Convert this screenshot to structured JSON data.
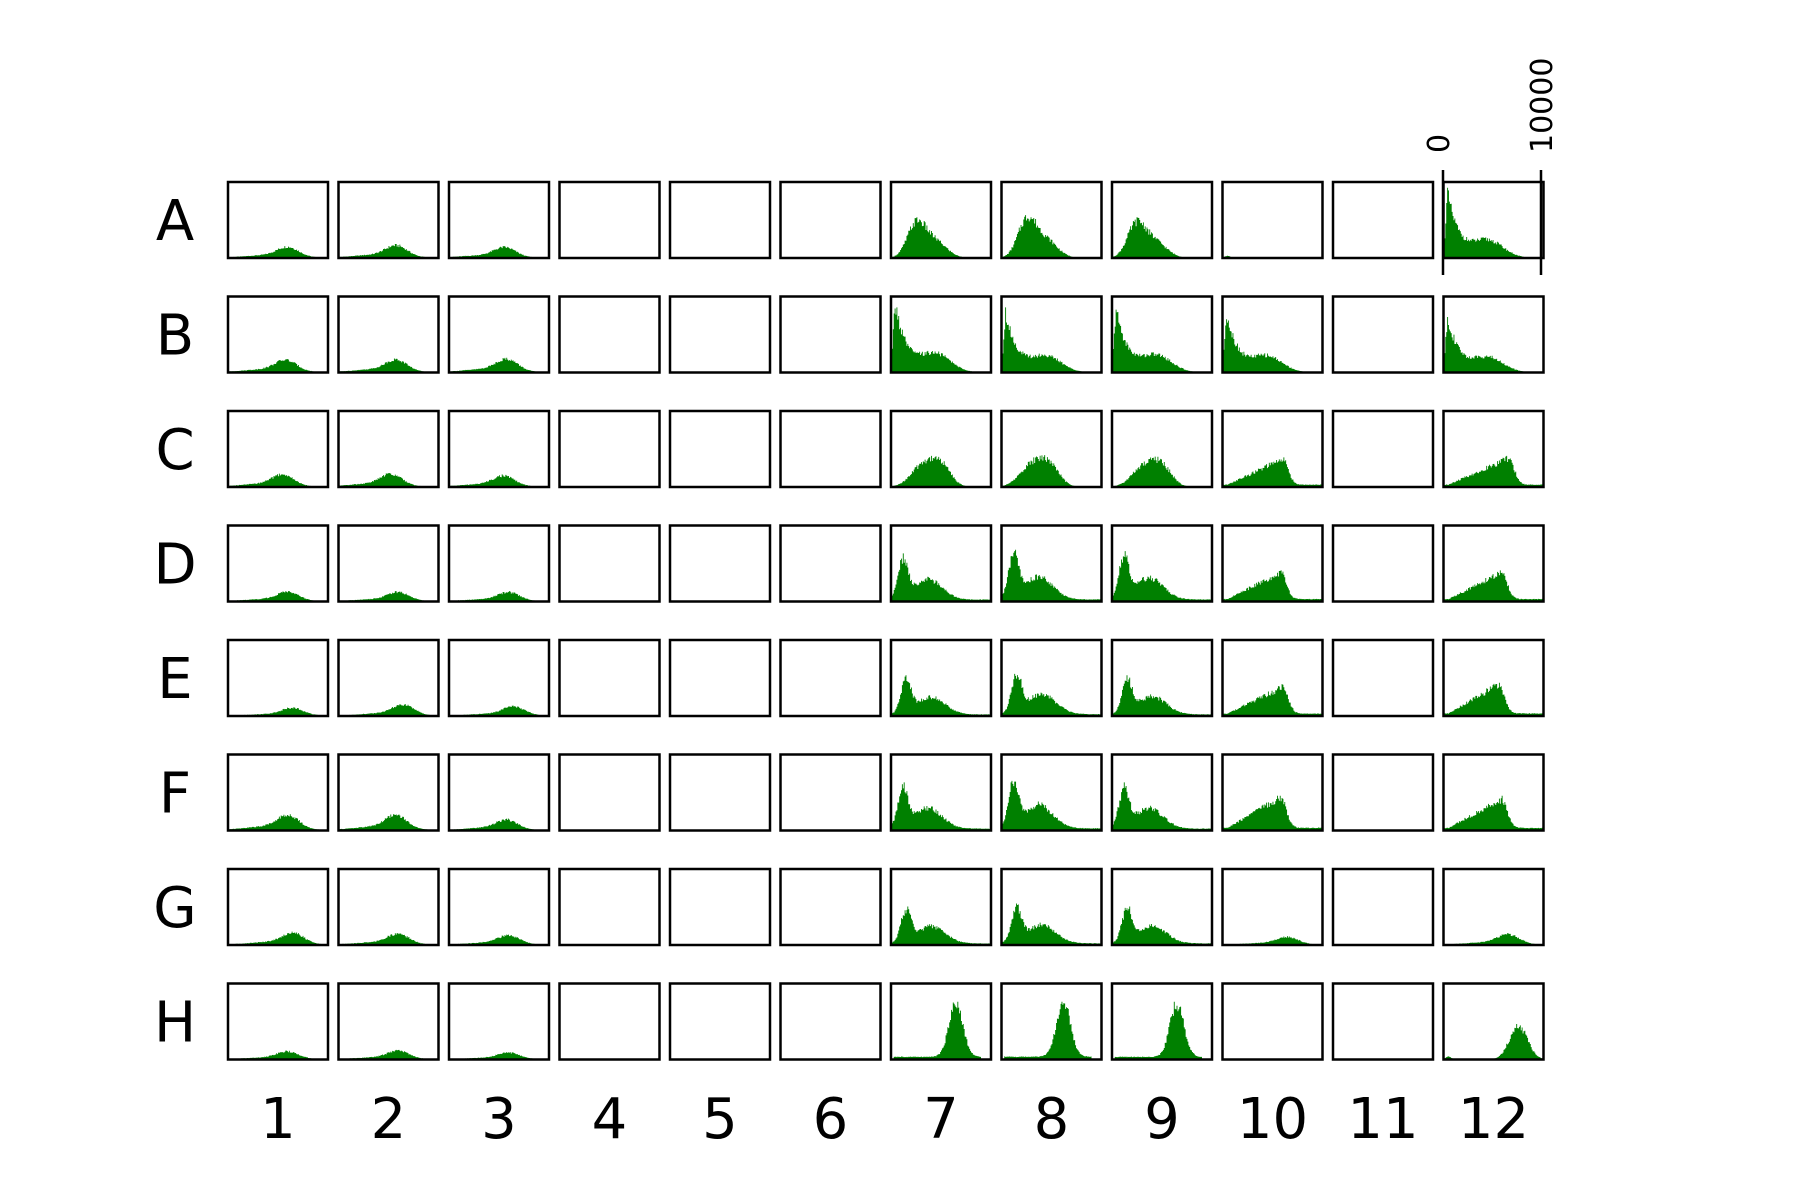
{
  "chart_data": {
    "type": "histogram-grid",
    "rows": [
      "A",
      "B",
      "C",
      "D",
      "E",
      "F",
      "G",
      "H"
    ],
    "columns": [
      "1",
      "2",
      "3",
      "4",
      "5",
      "6",
      "7",
      "8",
      "9",
      "10",
      "11",
      "12"
    ],
    "x_ticks": [
      "0",
      "10000"
    ],
    "xlim": [
      0,
      10000
    ],
    "color": "#008000",
    "wells": {
      "A1": {
        "shape": "lowhump",
        "amp": 0.16,
        "peak": 6000
      },
      "A2": {
        "shape": "lowhump",
        "amp": 0.19,
        "peak": 5800
      },
      "A3": {
        "shape": "lowhump",
        "amp": 0.16,
        "peak": 5600
      },
      "A7": {
        "shape": "leftpeak",
        "amp": 0.55,
        "peak": 2500
      },
      "A8": {
        "shape": "leftpeak",
        "amp": 0.58,
        "peak": 2500
      },
      "A9": {
        "shape": "leftpeak",
        "amp": 0.55,
        "peak": 2400
      },
      "A10": {
        "shape": "flat",
        "amp": 0.03,
        "peak": 1000
      },
      "A12": {
        "shape": "sharpdecay",
        "amp": 0.95,
        "peak": 500
      },
      "B1": {
        "shape": "lowhump",
        "amp": 0.18,
        "peak": 5800
      },
      "B2": {
        "shape": "lowhump",
        "amp": 0.19,
        "peak": 5800
      },
      "B3": {
        "shape": "lowhump",
        "amp": 0.2,
        "peak": 5800
      },
      "B7": {
        "shape": "sharpdecay",
        "amp": 0.88,
        "peak": 700
      },
      "B8": {
        "shape": "sharpdecay",
        "amp": 0.88,
        "peak": 700
      },
      "B9": {
        "shape": "sharpdecay",
        "amp": 0.85,
        "peak": 700
      },
      "B10": {
        "shape": "sharpdecay",
        "amp": 0.72,
        "peak": 700
      },
      "B12": {
        "shape": "sharpdecay",
        "amp": 0.75,
        "peak": 700
      },
      "C1": {
        "shape": "lowhump",
        "amp": 0.18,
        "peak": 5500
      },
      "C2": {
        "shape": "lowhump",
        "amp": 0.19,
        "peak": 5300
      },
      "C3": {
        "shape": "lowhump",
        "amp": 0.17,
        "peak": 5500
      },
      "C7": {
        "shape": "plateau",
        "amp": 0.42,
        "peak": 4000
      },
      "C8": {
        "shape": "plateau",
        "amp": 0.43,
        "peak": 3800
      },
      "C9": {
        "shape": "plateau",
        "amp": 0.41,
        "peak": 4000
      },
      "C10": {
        "shape": "ramp",
        "amp": 0.4,
        "peak": 6000
      },
      "C12": {
        "shape": "ramp",
        "amp": 0.42,
        "peak": 6500
      },
      "D1": {
        "shape": "lowhump",
        "amp": 0.14,
        "peak": 6000
      },
      "D2": {
        "shape": "lowhump",
        "amp": 0.14,
        "peak": 6000
      },
      "D3": {
        "shape": "lowhump",
        "amp": 0.14,
        "peak": 6000
      },
      "D7": {
        "shape": "twopeak",
        "amp": 0.65,
        "peak": 1200
      },
      "D8": {
        "shape": "twopeak",
        "amp": 0.7,
        "peak": 1200
      },
      "D9": {
        "shape": "twopeak",
        "amp": 0.68,
        "peak": 1200
      },
      "D10": {
        "shape": "ramp",
        "amp": 0.42,
        "peak": 5800
      },
      "D12": {
        "shape": "ramp",
        "amp": 0.42,
        "peak": 5800
      },
      "E1": {
        "shape": "lowhump",
        "amp": 0.12,
        "peak": 6500
      },
      "E2": {
        "shape": "lowhump",
        "amp": 0.16,
        "peak": 6500
      },
      "E3": {
        "shape": "lowhump",
        "amp": 0.14,
        "peak": 6500
      },
      "E7": {
        "shape": "twopeak",
        "amp": 0.55,
        "peak": 1500
      },
      "E8": {
        "shape": "twopeak",
        "amp": 0.57,
        "peak": 1500
      },
      "E9": {
        "shape": "twopeak",
        "amp": 0.55,
        "peak": 1500
      },
      "E10": {
        "shape": "ramp",
        "amp": 0.43,
        "peak": 6000
      },
      "E12": {
        "shape": "ramp",
        "amp": 0.45,
        "peak": 5500
      },
      "F1": {
        "shape": "lowhump",
        "amp": 0.22,
        "peak": 6000
      },
      "F2": {
        "shape": "lowhump",
        "amp": 0.22,
        "peak": 5800
      },
      "F3": {
        "shape": "lowhump",
        "amp": 0.16,
        "peak": 5800
      },
      "F7": {
        "shape": "twopeak",
        "amp": 0.65,
        "peak": 1200
      },
      "F8": {
        "shape": "twopeak",
        "amp": 0.67,
        "peak": 1200
      },
      "F9": {
        "shape": "twopeak",
        "amp": 0.65,
        "peak": 1200
      },
      "F10": {
        "shape": "ramp",
        "amp": 0.47,
        "peak": 5800
      },
      "F12": {
        "shape": "ramp",
        "amp": 0.47,
        "peak": 5800
      },
      "G1": {
        "shape": "lowhump",
        "amp": 0.18,
        "peak": 6500
      },
      "G2": {
        "shape": "lowhump",
        "amp": 0.16,
        "peak": 6000
      },
      "G3": {
        "shape": "lowhump",
        "amp": 0.14,
        "peak": 6000
      },
      "G7": {
        "shape": "twopeak",
        "amp": 0.52,
        "peak": 1500
      },
      "G8": {
        "shape": "twopeak",
        "amp": 0.56,
        "peak": 1500
      },
      "G9": {
        "shape": "twopeak",
        "amp": 0.52,
        "peak": 1500
      },
      "G10": {
        "shape": "lowhump",
        "amp": 0.12,
        "peak": 6500
      },
      "G12": {
        "shape": "lowhump",
        "amp": 0.16,
        "peak": 6500
      },
      "H1": {
        "shape": "lowhump",
        "amp": 0.12,
        "peak": 6000
      },
      "H2": {
        "shape": "lowhump",
        "amp": 0.13,
        "peak": 6000
      },
      "H3": {
        "shape": "lowhump",
        "amp": 0.1,
        "peak": 6000
      },
      "H7": {
        "shape": "rightpeak",
        "amp": 0.78,
        "peak": 6500
      },
      "H8": {
        "shape": "rightpeak",
        "amp": 0.78,
        "peak": 6200
      },
      "H9": {
        "shape": "rightpeak",
        "amp": 0.78,
        "peak": 6500
      },
      "H12": {
        "shape": "rightplateau",
        "amp": 0.48,
        "peak": 7500
      }
    }
  }
}
